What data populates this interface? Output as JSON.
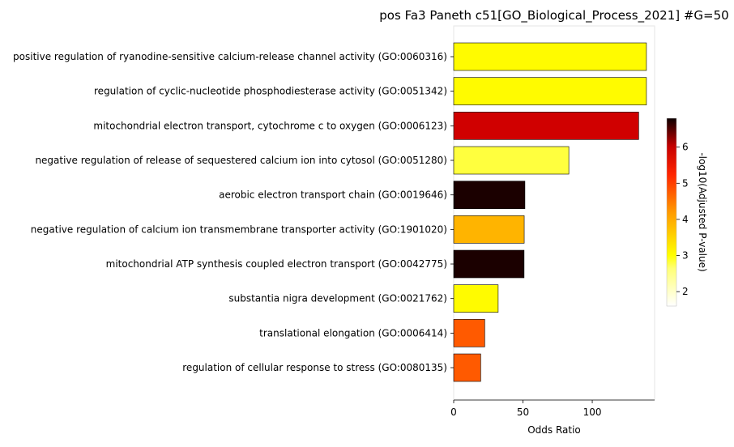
{
  "chart_data": {
    "type": "bar",
    "orientation": "horizontal",
    "title": "pos Fa3 Paneth c51[GO_Biological_Process_2021] #G=50",
    "xlabel": "Odds Ratio",
    "ylabel": "",
    "xlim": [
      0,
      145
    ],
    "xticks": [
      "0",
      "50",
      "100"
    ],
    "categories": [
      "positive regulation of ryanodine-sensitive calcium-release channel activity (GO:0060316)",
      "regulation of cyclic-nucleotide phosphodiesterase activity (GO:0051342)",
      "mitochondrial electron transport, cytochrome c to oxygen (GO:0006123)",
      "negative regulation of release of sequestered calcium ion into cytosol (GO:0051280)",
      "aerobic electron transport chain (GO:0019646)",
      "negative regulation of calcium ion transmembrane transporter activity (GO:1901020)",
      "mitochondrial ATP synthesis coupled electron transport (GO:0042775)",
      "substantia nigra development (GO:0021762)",
      "translational elongation (GO:0006414)",
      "regulation of cellular response to stress (GO:0080135)"
    ],
    "values": [
      139.1,
      139.1,
      133.5,
      83.1,
      51.4,
      50.9,
      50.8,
      32.1,
      22.4,
      19.5
    ],
    "color_values": [
      2.95,
      2.95,
      5.25,
      2.6,
      6.6,
      3.5,
      6.6,
      2.95,
      4.2,
      4.2
    ],
    "colorbar": {
      "label": "-log10(Adjusted P-value)",
      "range": [
        1.6,
        6.8
      ],
      "ticks": [
        "2",
        "3",
        "4",
        "5",
        "6"
      ],
      "colormap": "hot_r"
    },
    "legend": "none",
    "grid": false
  }
}
